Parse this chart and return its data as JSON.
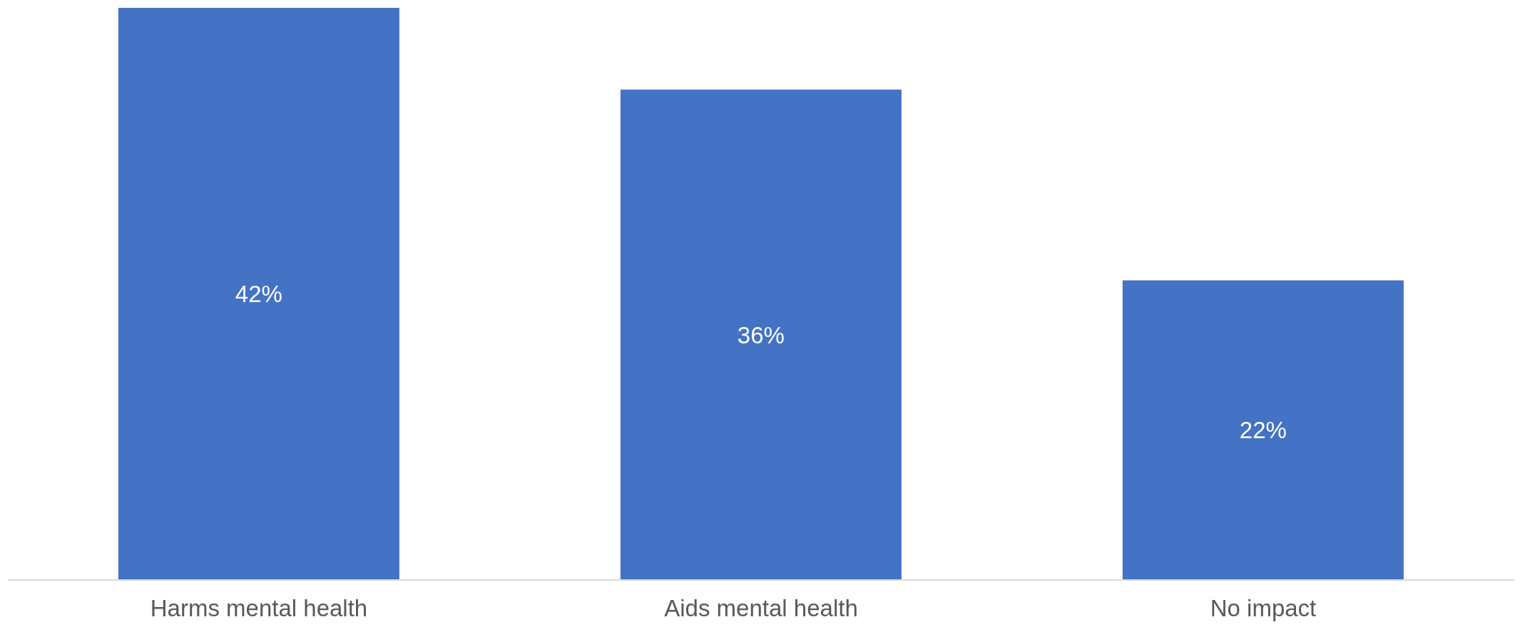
{
  "chart_data": {
    "type": "bar",
    "categories": [
      "Harms mental health",
      "Aids mental health",
      "No impact"
    ],
    "values": [
      42,
      36,
      22
    ],
    "color": "#4472c4",
    "value_labels": [
      "42%",
      "36%",
      "22%"
    ],
    "grid": false,
    "legend": false
  }
}
